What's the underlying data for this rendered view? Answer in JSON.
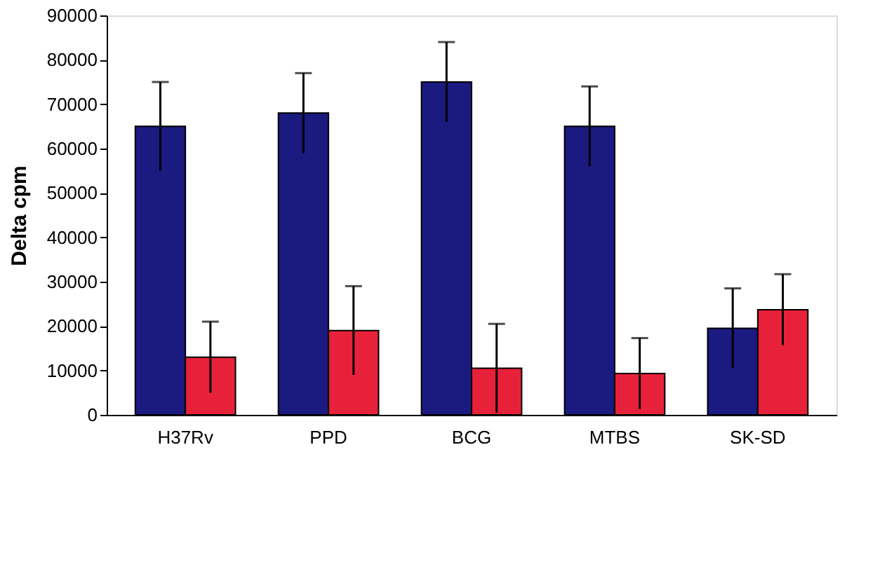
{
  "chart_data": {
    "type": "bar",
    "ylabel": "Delta cpm",
    "categories": [
      "H37Rv",
      "PPD",
      "BCG",
      "MTBS",
      "SK-SD"
    ],
    "series": [
      {
        "color": "#1a1a80",
        "values": [
          65000,
          68000,
          75000,
          65000,
          19500
        ],
        "errors": [
          10000,
          9000,
          9000,
          9000,
          9000
        ]
      },
      {
        "color": "#e8213a",
        "values": [
          13000,
          19000,
          10500,
          9300,
          23700
        ],
        "errors": [
          8000,
          10000,
          10000,
          8000,
          8000
        ]
      }
    ],
    "ylim": [
      0,
      90000
    ],
    "yticks": [
      0,
      10000,
      20000,
      30000,
      40000,
      50000,
      60000,
      70000,
      80000,
      90000
    ],
    "grid": false,
    "legend": false
  }
}
